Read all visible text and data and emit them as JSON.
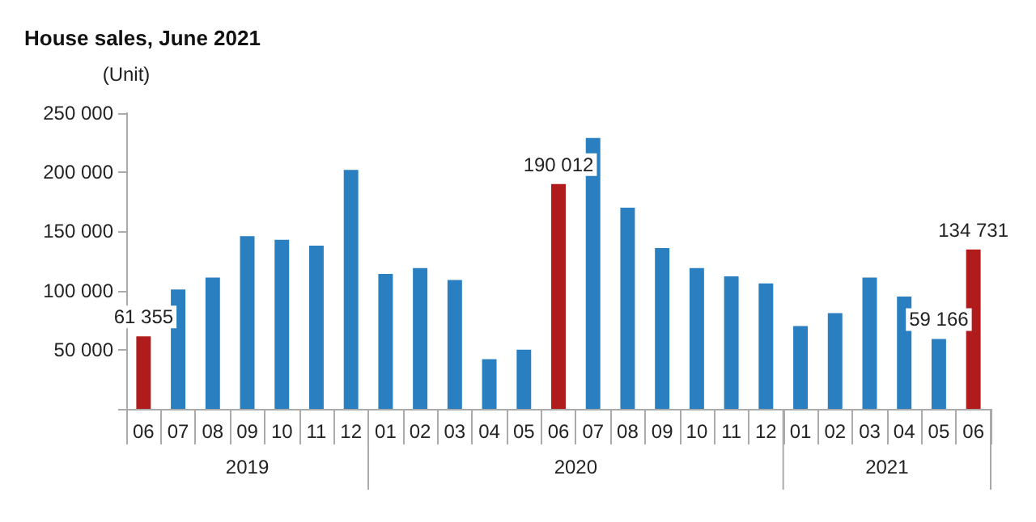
{
  "chart_data": {
    "type": "bar",
    "title": "House sales, June 2021",
    "ylabel": "(Unit)",
    "categories": [
      "06",
      "07",
      "08",
      "09",
      "10",
      "11",
      "12",
      "01",
      "02",
      "03",
      "04",
      "05",
      "06",
      "07",
      "08",
      "09",
      "10",
      "11",
      "12",
      "01",
      "02",
      "03",
      "04",
      "05",
      "06"
    ],
    "values": [
      61355,
      101000,
      111000,
      146000,
      143000,
      138000,
      202000,
      114000,
      119000,
      109000,
      42000,
      50000,
      190012,
      229000,
      170000,
      136000,
      119000,
      112000,
      106000,
      70000,
      81000,
      111000,
      95000,
      59166,
      134731
    ],
    "colors": [
      "#b01c1c",
      "#2a7fc1",
      "#2a7fc1",
      "#2a7fc1",
      "#2a7fc1",
      "#2a7fc1",
      "#2a7fc1",
      "#2a7fc1",
      "#2a7fc1",
      "#2a7fc1",
      "#2a7fc1",
      "#2a7fc1",
      "#b01c1c",
      "#2a7fc1",
      "#2a7fc1",
      "#2a7fc1",
      "#2a7fc1",
      "#2a7fc1",
      "#2a7fc1",
      "#2a7fc1",
      "#2a7fc1",
      "#2a7fc1",
      "#2a7fc1",
      "#2a7fc1",
      "#b01c1c"
    ],
    "value_labels": [
      "61 355",
      null,
      null,
      null,
      null,
      null,
      null,
      null,
      null,
      null,
      null,
      null,
      "190 012",
      null,
      null,
      null,
      null,
      null,
      null,
      null,
      null,
      null,
      null,
      "59 166",
      "134 731"
    ],
    "ylim": [
      0,
      250000
    ],
    "yticks": [
      {
        "value": 0,
        "label": null
      },
      {
        "value": 50000,
        "label": "50 000"
      },
      {
        "value": 100000,
        "label": "100 000"
      },
      {
        "value": 150000,
        "label": "150 000"
      },
      {
        "value": 200000,
        "label": "200 000"
      },
      {
        "value": 250000,
        "label": "250 000"
      }
    ],
    "annotations": [
      "2019",
      "2020",
      "2021"
    ],
    "grid": false
  }
}
